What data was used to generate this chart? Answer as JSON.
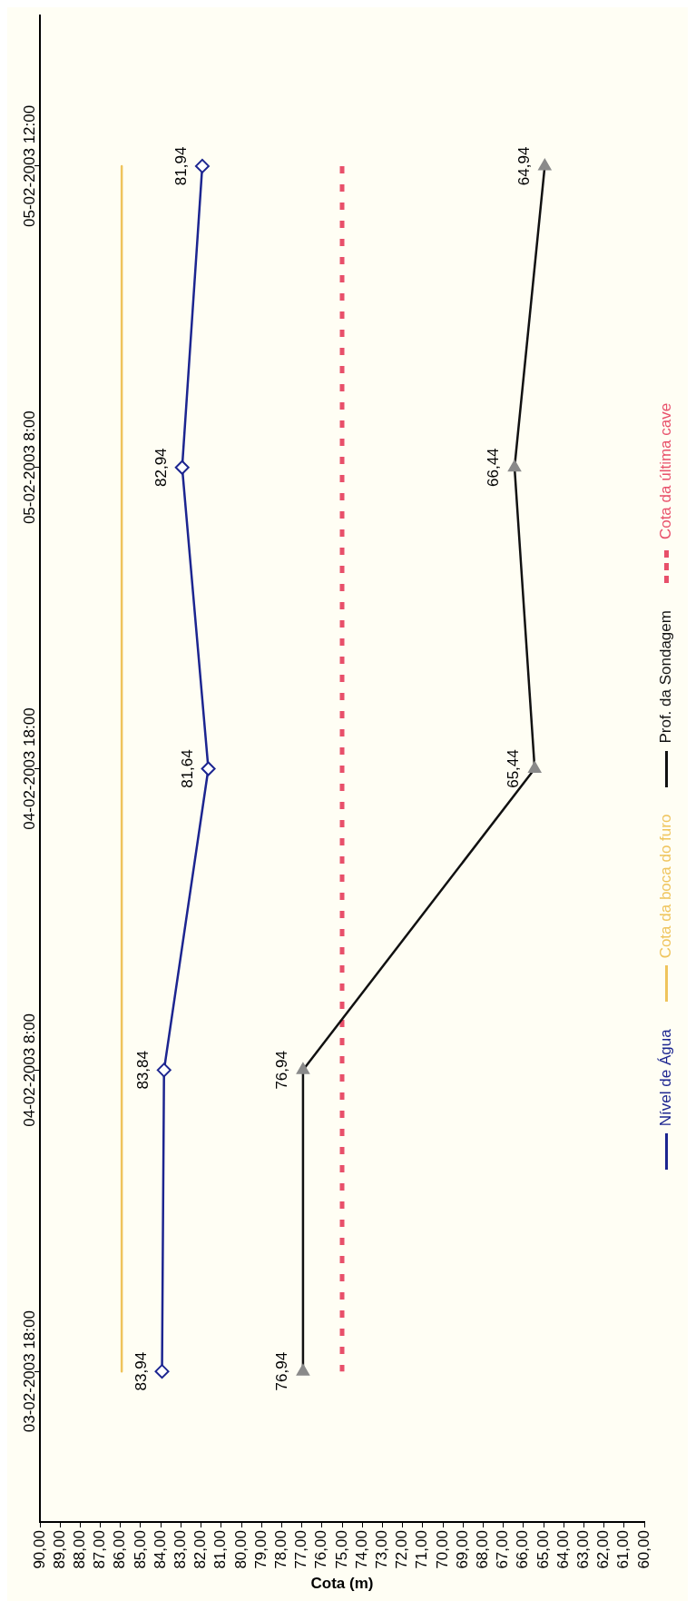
{
  "chart_data": {
    "type": "line",
    "orientation": "horizontal",
    "xlabel": "Cota (m)",
    "categories": [
      "05-02-2003 12:00",
      "05-02-2003 8:00",
      "04-02-2003 18:00",
      "04-02-2003 8:00",
      "03-02-2003 18:00"
    ],
    "xlim": [
      90,
      60
    ],
    "xticks": [
      {
        "value": 90,
        "label": "90,00"
      },
      {
        "value": 89,
        "label": "89,00"
      },
      {
        "value": 88,
        "label": "88,00"
      },
      {
        "value": 87,
        "label": "87,00"
      },
      {
        "value": 86,
        "label": "86,00"
      },
      {
        "value": 85,
        "label": "85,00"
      },
      {
        "value": 84,
        "label": "84,00"
      },
      {
        "value": 83,
        "label": "83,00"
      },
      {
        "value": 82,
        "label": "82,00"
      },
      {
        "value": 81,
        "label": "81,00"
      },
      {
        "value": 80,
        "label": "80,00"
      },
      {
        "value": 79,
        "label": "79,00"
      },
      {
        "value": 78,
        "label": "78,00"
      },
      {
        "value": 77,
        "label": "77,00"
      },
      {
        "value": 76,
        "label": "76,00"
      },
      {
        "value": 75,
        "label": "75,00"
      },
      {
        "value": 74,
        "label": "74,00"
      },
      {
        "value": 73,
        "label": "73,00"
      },
      {
        "value": 72,
        "label": "72,00"
      },
      {
        "value": 71,
        "label": "71,00"
      },
      {
        "value": 70,
        "label": "70,00"
      },
      {
        "value": 69,
        "label": "69,00"
      },
      {
        "value": 68,
        "label": "68,00"
      },
      {
        "value": 67,
        "label": "67,00"
      },
      {
        "value": 66,
        "label": "66,00"
      },
      {
        "value": 65,
        "label": "65,00"
      },
      {
        "value": 64,
        "label": "64,00"
      },
      {
        "value": 63,
        "label": "63,00"
      },
      {
        "value": 62,
        "label": "62,00"
      },
      {
        "value": 61,
        "label": "61,00"
      },
      {
        "value": 60,
        "label": "60,00"
      }
    ],
    "grid": false,
    "legend": "right",
    "series": [
      {
        "name": "Nível de Água",
        "color": "#1c2590",
        "marker": "diamond",
        "values": [
          81.94,
          82.94,
          81.64,
          83.84,
          83.94
        ],
        "value_labels": [
          "81,94",
          "82,94",
          "81,64",
          "83,84",
          "83,94"
        ]
      },
      {
        "name": "Cota da boca do furo",
        "color": "#efc45c",
        "marker": "none",
        "values": [
          85.94,
          85.94,
          85.94,
          85.94,
          85.94
        ]
      },
      {
        "name": "Prof. da Sondagem",
        "color": "#111111",
        "marker": "triangle",
        "values": [
          64.94,
          66.44,
          65.44,
          76.94,
          76.94
        ],
        "value_labels": [
          "64,94",
          "66,44",
          "65,44",
          "76,94",
          "76,94"
        ]
      },
      {
        "name": "Cota da última cave",
        "color": "#e8506a",
        "marker": "none",
        "line_style": "dashed",
        "values": [
          75,
          75,
          75,
          75,
          75
        ]
      }
    ]
  }
}
